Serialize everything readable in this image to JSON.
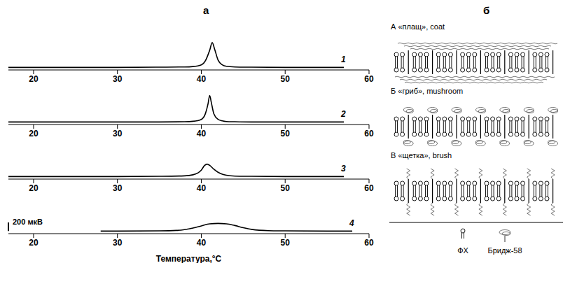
{
  "panel_labels": [
    "а",
    "б"
  ],
  "chart_data": [
    {
      "type": "line",
      "series": [
        {
          "name": "1",
          "color": "#000000",
          "x": [
            17,
            20,
            25,
            30,
            35,
            38,
            39,
            40,
            40.5,
            41,
            41.3,
            41.6,
            42,
            42.5,
            43,
            44,
            46,
            50,
            55,
            57
          ],
          "values": [
            0,
            0,
            0,
            0,
            5,
            10,
            20,
            60,
            160,
            400,
            580,
            420,
            170,
            60,
            25,
            10,
            5,
            0,
            0,
            0
          ]
        }
      ],
      "xlim": [
        17,
        60
      ],
      "xticks": [
        20,
        30,
        40,
        50,
        60
      ],
      "ylim": [
        -60,
        840
      ],
      "tick_labels": "x"
    },
    {
      "type": "line",
      "series": [
        {
          "name": "2",
          "color": "#000000",
          "x": [
            17,
            20,
            25,
            30,
            35,
            38,
            39,
            40,
            40.5,
            40.8,
            41,
            41.2,
            41.5,
            42,
            42.5,
            43,
            44,
            46,
            50,
            55,
            57
          ],
          "values": [
            0,
            0,
            0,
            0,
            0,
            5,
            15,
            60,
            200,
            420,
            620,
            450,
            190,
            60,
            25,
            10,
            5,
            0,
            0,
            0,
            0
          ]
        }
      ],
      "xlim": [
        17,
        60
      ],
      "xticks": [
        20,
        30,
        40,
        50,
        60
      ],
      "ylim": [
        -60,
        840
      ],
      "tick_labels": "x"
    },
    {
      "type": "line",
      "series": [
        {
          "name": "3",
          "color": "#000000",
          "x": [
            17,
            20,
            25,
            30,
            35,
            38,
            39,
            40,
            40.4,
            40.7,
            41,
            41.5,
            42,
            42.5,
            43,
            44,
            46,
            50,
            55,
            57
          ],
          "values": [
            0,
            0,
            0,
            0,
            5,
            15,
            40,
            150,
            260,
            290,
            260,
            170,
            100,
            55,
            30,
            10,
            5,
            0,
            0,
            0
          ]
        }
      ],
      "xlim": [
        17,
        60
      ],
      "xticks": [
        20,
        30,
        40,
        50,
        60
      ],
      "ylim": [
        -60,
        840
      ],
      "tick_labels": "x"
    },
    {
      "type": "line",
      "series": [
        {
          "name": "4",
          "color": "#000000",
          "x": [
            28,
            30,
            35,
            37,
            38,
            39,
            40,
            41,
            42,
            43,
            44,
            45,
            46,
            48,
            50,
            55,
            58
          ],
          "values": [
            0,
            0,
            5,
            15,
            35,
            70,
            120,
            170,
            180,
            170,
            130,
            80,
            40,
            10,
            5,
            0,
            0
          ]
        }
      ],
      "xlim": [
        17,
        60
      ],
      "xticks": [
        20,
        30,
        40,
        50,
        60
      ],
      "ylim": [
        -60,
        840
      ],
      "tick_labels": "x",
      "x_label": "Температура,°С",
      "scale_bar": {
        "value": 200,
        "label": "200 мкВ"
      }
    }
  ],
  "diagram": {
    "rows": [
      {
        "label": "А «плащ», coat"
      },
      {
        "label": "Б «гриб», mushroom"
      },
      {
        "label": "В «щетка», brush"
      }
    ],
    "legend": [
      {
        "label": "ФХ"
      },
      {
        "label": "Бридж-58"
      }
    ]
  }
}
